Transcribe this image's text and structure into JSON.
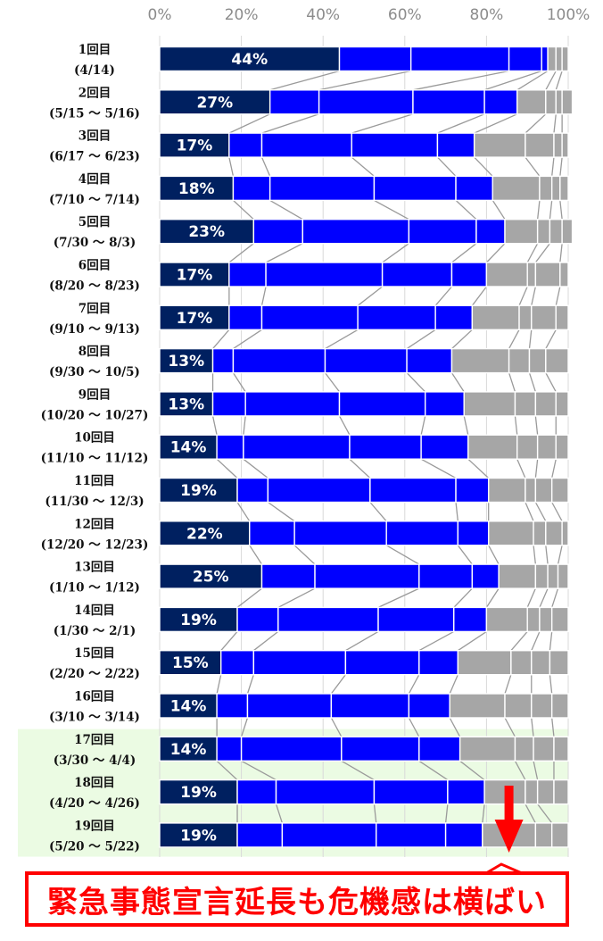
{
  "chart_data": {
    "type": "bar",
    "orientation": "horizontal",
    "stacked": true,
    "x_ticks": [
      "0%",
      "20%",
      "40%",
      "60%",
      "80%",
      "100%"
    ],
    "xlim": [
      0,
      100
    ],
    "categories": [
      [
        "1回目",
        "(4/14)"
      ],
      [
        "2回目",
        "(5/15 ～ 5/16)"
      ],
      [
        "3回目",
        "(6/17 ～ 6/23)"
      ],
      [
        "4回目",
        "(7/10 ～ 7/14)"
      ],
      [
        "5回目",
        "(7/30 ～ 8/3)"
      ],
      [
        "6回目",
        "(8/20 ～ 8/23)"
      ],
      [
        "7回目",
        "(9/10 ～ 9/13)"
      ],
      [
        "8回目",
        "(9/30 ～ 10/5)"
      ],
      [
        "9回目",
        "(10/20 ～ 10/27)"
      ],
      [
        "10回目",
        "(11/10 ～ 11/12)"
      ],
      [
        "11回目",
        "(11/30 ～ 12/3)"
      ],
      [
        "12回目",
        "(12/20 ～ 12/23)"
      ],
      [
        "13回目",
        "(1/10 ～ 1/12)"
      ],
      [
        "14回目",
        "(1/30 ～ 2/1)"
      ],
      [
        "15回目",
        "(2/20 ～ 2/22)"
      ],
      [
        "16回目",
        "(3/10 ～ 3/14)"
      ],
      [
        "17回目",
        "(3/30 ～ 4/4)"
      ],
      [
        "18回目",
        "(4/20 ～ 4/26)"
      ],
      [
        "19回目",
        "(5/20 ～ 5/22)"
      ]
    ],
    "data_labels": [
      "44%",
      "27%",
      "17%",
      "18%",
      "23%",
      "17%",
      "17%",
      "13%",
      "13%",
      "14%",
      "19%",
      "22%",
      "25%",
      "19%",
      "15%",
      "14%",
      "14%",
      "19%",
      "19%"
    ],
    "segments": [
      [
        44,
        17.5,
        24,
        8,
        1.5,
        2,
        1.5,
        1.5
      ],
      [
        27,
        12,
        23,
        17.5,
        8,
        7,
        2.5,
        1.5,
        2.5
      ],
      [
        17,
        8,
        22,
        21,
        9,
        12.5,
        7,
        2,
        1.5
      ],
      [
        18,
        9,
        25.5,
        20,
        9,
        11.5,
        3,
        2,
        2
      ],
      [
        23,
        12,
        26,
        16.5,
        7,
        8,
        3,
        3,
        2.5
      ],
      [
        17,
        9,
        28.5,
        17,
        8.5,
        10,
        2,
        6,
        2
      ],
      [
        17,
        8,
        23.5,
        19,
        9,
        11.5,
        3,
        6,
        3
      ],
      [
        13,
        5,
        22.5,
        20,
        11,
        14,
        5,
        4,
        5.5
      ],
      [
        13,
        8,
        23,
        21,
        9.5,
        12.5,
        5,
        5,
        3
      ],
      [
        14,
        6.5,
        26,
        17.5,
        11.5,
        12,
        5,
        4.5,
        3
      ],
      [
        19,
        7.5,
        25,
        21,
        8,
        9,
        2.5,
        4,
        4
      ],
      [
        22,
        11,
        22.5,
        17.5,
        7.5,
        11,
        3,
        4,
        1.5
      ],
      [
        25,
        13,
        25.5,
        13,
        6.5,
        9,
        3,
        2.5,
        2.5
      ],
      [
        19,
        10,
        24.5,
        18.5,
        8,
        10,
        3,
        3,
        4
      ],
      [
        15,
        8,
        22.5,
        18,
        9.5,
        13,
        5,
        4.5,
        4.5
      ],
      [
        14,
        7.5,
        20.5,
        19,
        10,
        13.5,
        6.5,
        5,
        4
      ],
      [
        14,
        6,
        24.5,
        19,
        10,
        13.5,
        4.5,
        5,
        3.5
      ],
      [
        19,
        9.5,
        24,
        18,
        9,
        10,
        3,
        4,
        3.5
      ],
      [
        19,
        11,
        23,
        17,
        9,
        13,
        4,
        4,
        0
      ]
    ],
    "segment_colors": [
      "#002060",
      "#0000ff",
      "#0000ff",
      "#0000ff",
      "#0000ff",
      "#a6a6a6",
      "#a6a6a6",
      "#a6a6a6",
      "#a6a6a6"
    ],
    "highlight_rows": [
      16,
      17,
      18
    ],
    "highlight_color": "#ebfbe3",
    "arrow_color": "#ff0000",
    "arrow_at": 85.5,
    "grid": true
  },
  "callout": {
    "text": "緊急事態宣言延長も危機感は横ばい",
    "color": "#ff0000"
  }
}
